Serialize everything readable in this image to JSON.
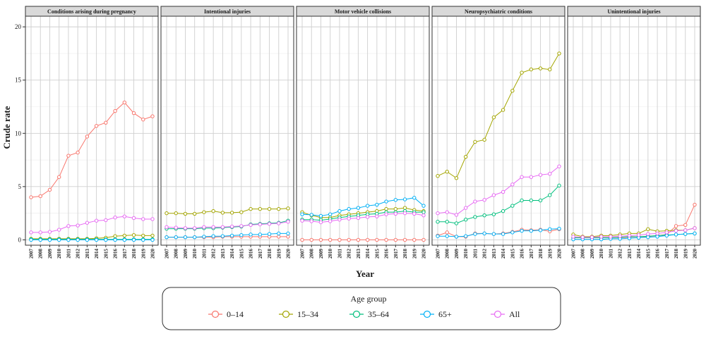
{
  "chart_data": {
    "type": "line",
    "ylabel": "Crude rate",
    "xlabel": "Year",
    "ylim": [
      -0.5,
      21
    ],
    "yticks": [
      0,
      5,
      10,
      15,
      20
    ],
    "x": [
      2007,
      2008,
      2009,
      2010,
      2011,
      2012,
      2013,
      2014,
      2015,
      2016,
      2017,
      2018,
      2019,
      2020
    ],
    "grid": true,
    "legend": {
      "title": "Age group",
      "placement": "bottom",
      "items": [
        {
          "label": "0–14",
          "color": "#F8766D"
        },
        {
          "label": "15–34",
          "color": "#A3A500"
        },
        {
          "label": "35–64",
          "color": "#00BF7D"
        },
        {
          "label": "65+",
          "color": "#00B0F6"
        },
        {
          "label": "All",
          "color": "#E76BF3"
        }
      ]
    },
    "panels": [
      {
        "title": "Conditions arising during pregnancy",
        "series": [
          {
            "name": "0–14",
            "color": "#F8766D",
            "values": [
              4.0,
              4.1,
              4.7,
              5.9,
              7.9,
              8.2,
              9.7,
              10.7,
              11.0,
              12.1,
              12.9,
              11.9,
              11.3,
              11.6
            ]
          },
          {
            "name": "15–34",
            "color": "#A3A500",
            "values": [
              0.1,
              0.1,
              0.1,
              0.1,
              0.1,
              0.1,
              0.1,
              0.15,
              0.2,
              0.35,
              0.4,
              0.45,
              0.4,
              0.4
            ]
          },
          {
            "name": "35–64",
            "color": "#00BF7D",
            "values": [
              0.05,
              0.05,
              0.05,
              0.05,
              0.05,
              0.05,
              0.05,
              0.05,
              0.05,
              0.05,
              0.05,
              0.05,
              0.05,
              0.05
            ]
          },
          {
            "name": "65+",
            "color": "#00B0F6",
            "values": [
              0.0,
              0.0,
              0.0,
              0.0,
              0.0,
              0.0,
              0.0,
              0.0,
              0.0,
              0.0,
              0.0,
              0.0,
              0.0,
              0.0
            ]
          },
          {
            "name": "All",
            "color": "#E76BF3",
            "values": [
              0.7,
              0.7,
              0.75,
              0.95,
              1.3,
              1.35,
              1.6,
              1.8,
              1.85,
              2.1,
              2.2,
              2.05,
              1.95,
              1.95
            ]
          }
        ]
      },
      {
        "title": "Intentional injuries",
        "series": [
          {
            "name": "0–14",
            "color": "#F8766D",
            "values": [
              0.25,
              0.25,
              0.25,
              0.25,
              0.25,
              0.25,
              0.3,
              0.3,
              0.3,
              0.3,
              0.3,
              0.3,
              0.3,
              0.3
            ]
          },
          {
            "name": "15–34",
            "color": "#A3A500",
            "values": [
              2.5,
              2.5,
              2.45,
              2.45,
              2.6,
              2.7,
              2.55,
              2.55,
              2.6,
              2.9,
              2.9,
              2.9,
              2.9,
              2.95
            ]
          },
          {
            "name": "35–64",
            "color": "#00BF7D",
            "values": [
              1.05,
              1.05,
              1.05,
              1.05,
              1.1,
              1.1,
              1.15,
              1.2,
              1.25,
              1.45,
              1.5,
              1.55,
              1.6,
              1.8
            ]
          },
          {
            "name": "65+",
            "color": "#00B0F6",
            "values": [
              0.25,
              0.25,
              0.25,
              0.25,
              0.3,
              0.35,
              0.35,
              0.4,
              0.45,
              0.5,
              0.5,
              0.55,
              0.6,
              0.6
            ]
          },
          {
            "name": "All",
            "color": "#E76BF3",
            "values": [
              1.2,
              1.15,
              1.1,
              1.1,
              1.2,
              1.2,
              1.2,
              1.25,
              1.3,
              1.4,
              1.45,
              1.5,
              1.55,
              1.7
            ]
          }
        ]
      },
      {
        "title": "Motor vehicle collisions",
        "series": [
          {
            "name": "0–14",
            "color": "#F8766D",
            "values": [
              0.0,
              0.0,
              0.0,
              0.0,
              0.0,
              0.0,
              0.0,
              0.0,
              0.0,
              0.0,
              0.0,
              0.0,
              0.0,
              0.0
            ]
          },
          {
            "name": "15–34",
            "color": "#A3A500",
            "values": [
              2.6,
              2.3,
              2.1,
              2.1,
              2.3,
              2.4,
              2.5,
              2.6,
              2.7,
              2.9,
              2.9,
              3.0,
              2.8,
              2.7
            ]
          },
          {
            "name": "35–64",
            "color": "#00BF7D",
            "values": [
              1.9,
              1.9,
              1.85,
              1.95,
              2.1,
              2.2,
              2.3,
              2.4,
              2.45,
              2.6,
              2.6,
              2.7,
              2.6,
              2.6
            ]
          },
          {
            "name": "65+",
            "color": "#00B0F6",
            "values": [
              2.4,
              2.35,
              2.25,
              2.4,
              2.7,
              2.9,
              3.0,
              3.2,
              3.3,
              3.6,
              3.75,
              3.8,
              3.95,
              3.2
            ]
          },
          {
            "name": "All",
            "color": "#E76BF3",
            "values": [
              1.8,
              1.75,
              1.65,
              1.75,
              1.9,
              2.0,
              2.05,
              2.15,
              2.2,
              2.4,
              2.45,
              2.5,
              2.45,
              2.3
            ]
          }
        ]
      },
      {
        "title": "Neuropsychiatric conditions",
        "series": [
          {
            "name": "0–14",
            "color": "#F8766D",
            "values": [
              0.4,
              0.7,
              0.3,
              0.3,
              0.6,
              0.6,
              0.55,
              0.6,
              0.75,
              0.95,
              0.9,
              0.95,
              0.8,
              1.0
            ]
          },
          {
            "name": "15–34",
            "color": "#A3A500",
            "values": [
              6.0,
              6.4,
              5.8,
              7.8,
              9.2,
              9.4,
              11.5,
              12.2,
              14.0,
              15.7,
              16.0,
              16.1,
              16.0,
              17.5
            ]
          },
          {
            "name": "35–64",
            "color": "#00BF7D",
            "values": [
              1.7,
              1.7,
              1.55,
              1.9,
              2.15,
              2.3,
              2.4,
              2.7,
              3.2,
              3.7,
              3.7,
              3.7,
              4.2,
              5.1
            ]
          },
          {
            "name": "65+",
            "color": "#00B0F6",
            "values": [
              0.35,
              0.35,
              0.3,
              0.35,
              0.55,
              0.6,
              0.55,
              0.55,
              0.7,
              0.85,
              0.85,
              0.9,
              1.0,
              1.05
            ]
          },
          {
            "name": "All",
            "color": "#E76BF3",
            "values": [
              2.5,
              2.6,
              2.35,
              3.0,
              3.6,
              3.75,
              4.2,
              4.5,
              5.2,
              5.9,
              5.9,
              6.1,
              6.2,
              6.9
            ]
          }
        ]
      },
      {
        "title": "Unintentional injuries",
        "series": [
          {
            "name": "0–14",
            "color": "#F8766D",
            "values": [
              0.2,
              0.2,
              0.2,
              0.2,
              0.2,
              0.2,
              0.25,
              0.3,
              0.3,
              0.4,
              0.5,
              1.3,
              1.4,
              3.3
            ]
          },
          {
            "name": "15–34",
            "color": "#A3A500",
            "values": [
              0.5,
              0.3,
              0.3,
              0.4,
              0.4,
              0.5,
              0.6,
              0.6,
              1.0,
              0.8,
              0.85,
              0.9,
              0.9,
              1.1
            ]
          },
          {
            "name": "35–64",
            "color": "#00BF7D",
            "values": [
              0.2,
              0.2,
              0.2,
              0.2,
              0.2,
              0.25,
              0.3,
              0.3,
              0.35,
              0.4,
              0.45,
              0.5,
              0.55,
              0.6
            ]
          },
          {
            "name": "65+",
            "color": "#00B0F6",
            "values": [
              0.05,
              0.05,
              0.05,
              0.05,
              0.1,
              0.1,
              0.15,
              0.2,
              0.25,
              0.3,
              0.4,
              0.5,
              0.55,
              0.6
            ]
          },
          {
            "name": "All",
            "color": "#E76BF3",
            "values": [
              0.3,
              0.25,
              0.25,
              0.3,
              0.3,
              0.35,
              0.4,
              0.45,
              0.55,
              0.6,
              0.7,
              0.85,
              0.9,
              1.1
            ]
          }
        ]
      }
    ]
  }
}
